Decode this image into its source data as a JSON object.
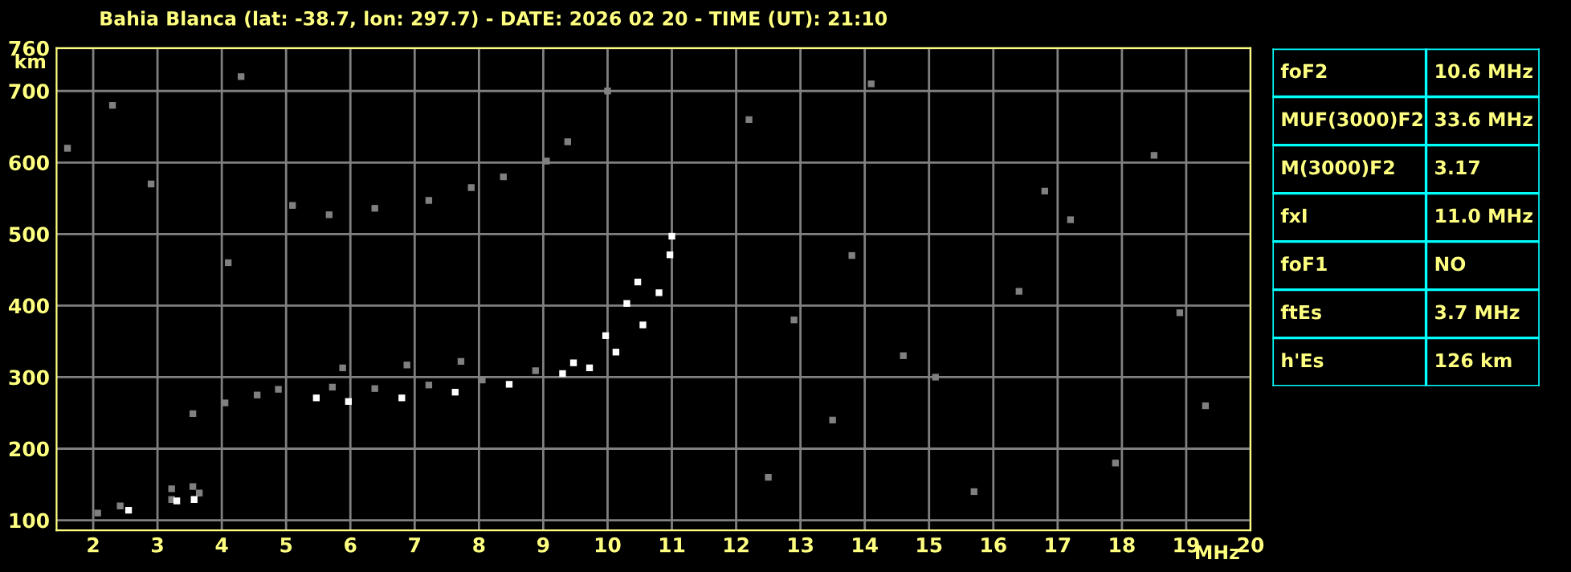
{
  "chart_data": [
    {
      "type": "scatter",
      "title": "Bahia Blanca (lat: -38.7, lon: 297.7) - DATE: 2026 02 20 - TIME (UT): 21:10",
      "xlabel": "MHz",
      "ylabel": "km",
      "xlim": [
        1.43,
        20
      ],
      "ylim": [
        86,
        760
      ],
      "xticks": [
        2,
        3,
        4,
        5,
        6,
        7,
        8,
        9,
        10,
        11,
        12,
        13,
        14,
        15,
        16,
        17,
        18,
        19,
        20
      ],
      "yticks": [
        100,
        200,
        300,
        400,
        500,
        600,
        700,
        760
      ],
      "grid": true,
      "marker": "square",
      "series": [
        {
          "color": "#808080",
          "x": [
            5.72,
            6.38,
            7.22,
            8.05,
            8.88,
            5.88,
            6.88,
            7.72,
            3.55,
            4.05,
            4.55,
            4.88,
            2.07,
            2.42,
            3.22,
            3.65,
            3.55,
            3.22
          ],
          "values": [
            286,
            284,
            289,
            296,
            309,
            313,
            317,
            322,
            249,
            264,
            275,
            283,
            110,
            120,
            129,
            138,
            147,
            144
          ]
        },
        {
          "color": "#808080",
          "x": [
            5.67,
            6.38,
            7.22,
            7.88,
            8.38,
            9.05,
            9.38,
            10.0
          ],
          "values": [
            527,
            536,
            547,
            565,
            580,
            602,
            629,
            700
          ]
        },
        {
          "color": "#808080",
          "x": [
            1.6,
            2.3,
            2.9,
            4.1,
            4.3,
            5.1,
            12.2,
            12.9,
            13.5,
            14.1,
            14.6,
            15.7,
            16.4,
            17.2,
            17.9,
            18.5,
            19.3,
            15.1,
            16.8,
            13.8,
            18.9,
            12.5
          ],
          "values": [
            620,
            680,
            570,
            460,
            720,
            540,
            660,
            380,
            240,
            710,
            330,
            140,
            420,
            520,
            180,
            610,
            260,
            300,
            560,
            470,
            390,
            160
          ]
        },
        {
          "color": "#ffffff",
          "x": [
            5.47,
            5.97,
            6.8,
            7.63,
            8.47,
            9.3,
            9.72,
            10.13,
            10.55,
            10.8,
            10.97,
            11.0
          ],
          "values": [
            271,
            266,
            271,
            279,
            290,
            305,
            313,
            335,
            373,
            418,
            471,
            497
          ]
        },
        {
          "color": "#ffffff",
          "x": [
            9.47,
            9.97,
            10.3,
            10.47,
            2.55,
            3.3,
            3.57
          ],
          "values": [
            320,
            358,
            403,
            433,
            114,
            127,
            129
          ]
        }
      ]
    },
    {
      "type": "other",
      "categories": [
        "foF2",
        "MUF(3000)F2",
        "M(3000)F2",
        "fxI",
        "foF1",
        "ftEs",
        "h'Es"
      ],
      "value_labels": [
        "10.6 MHz",
        "33.6 MHz",
        "3.17",
        "11.0 MHz",
        "NO",
        "3.7 MHz",
        "126 km"
      ]
    }
  ]
}
